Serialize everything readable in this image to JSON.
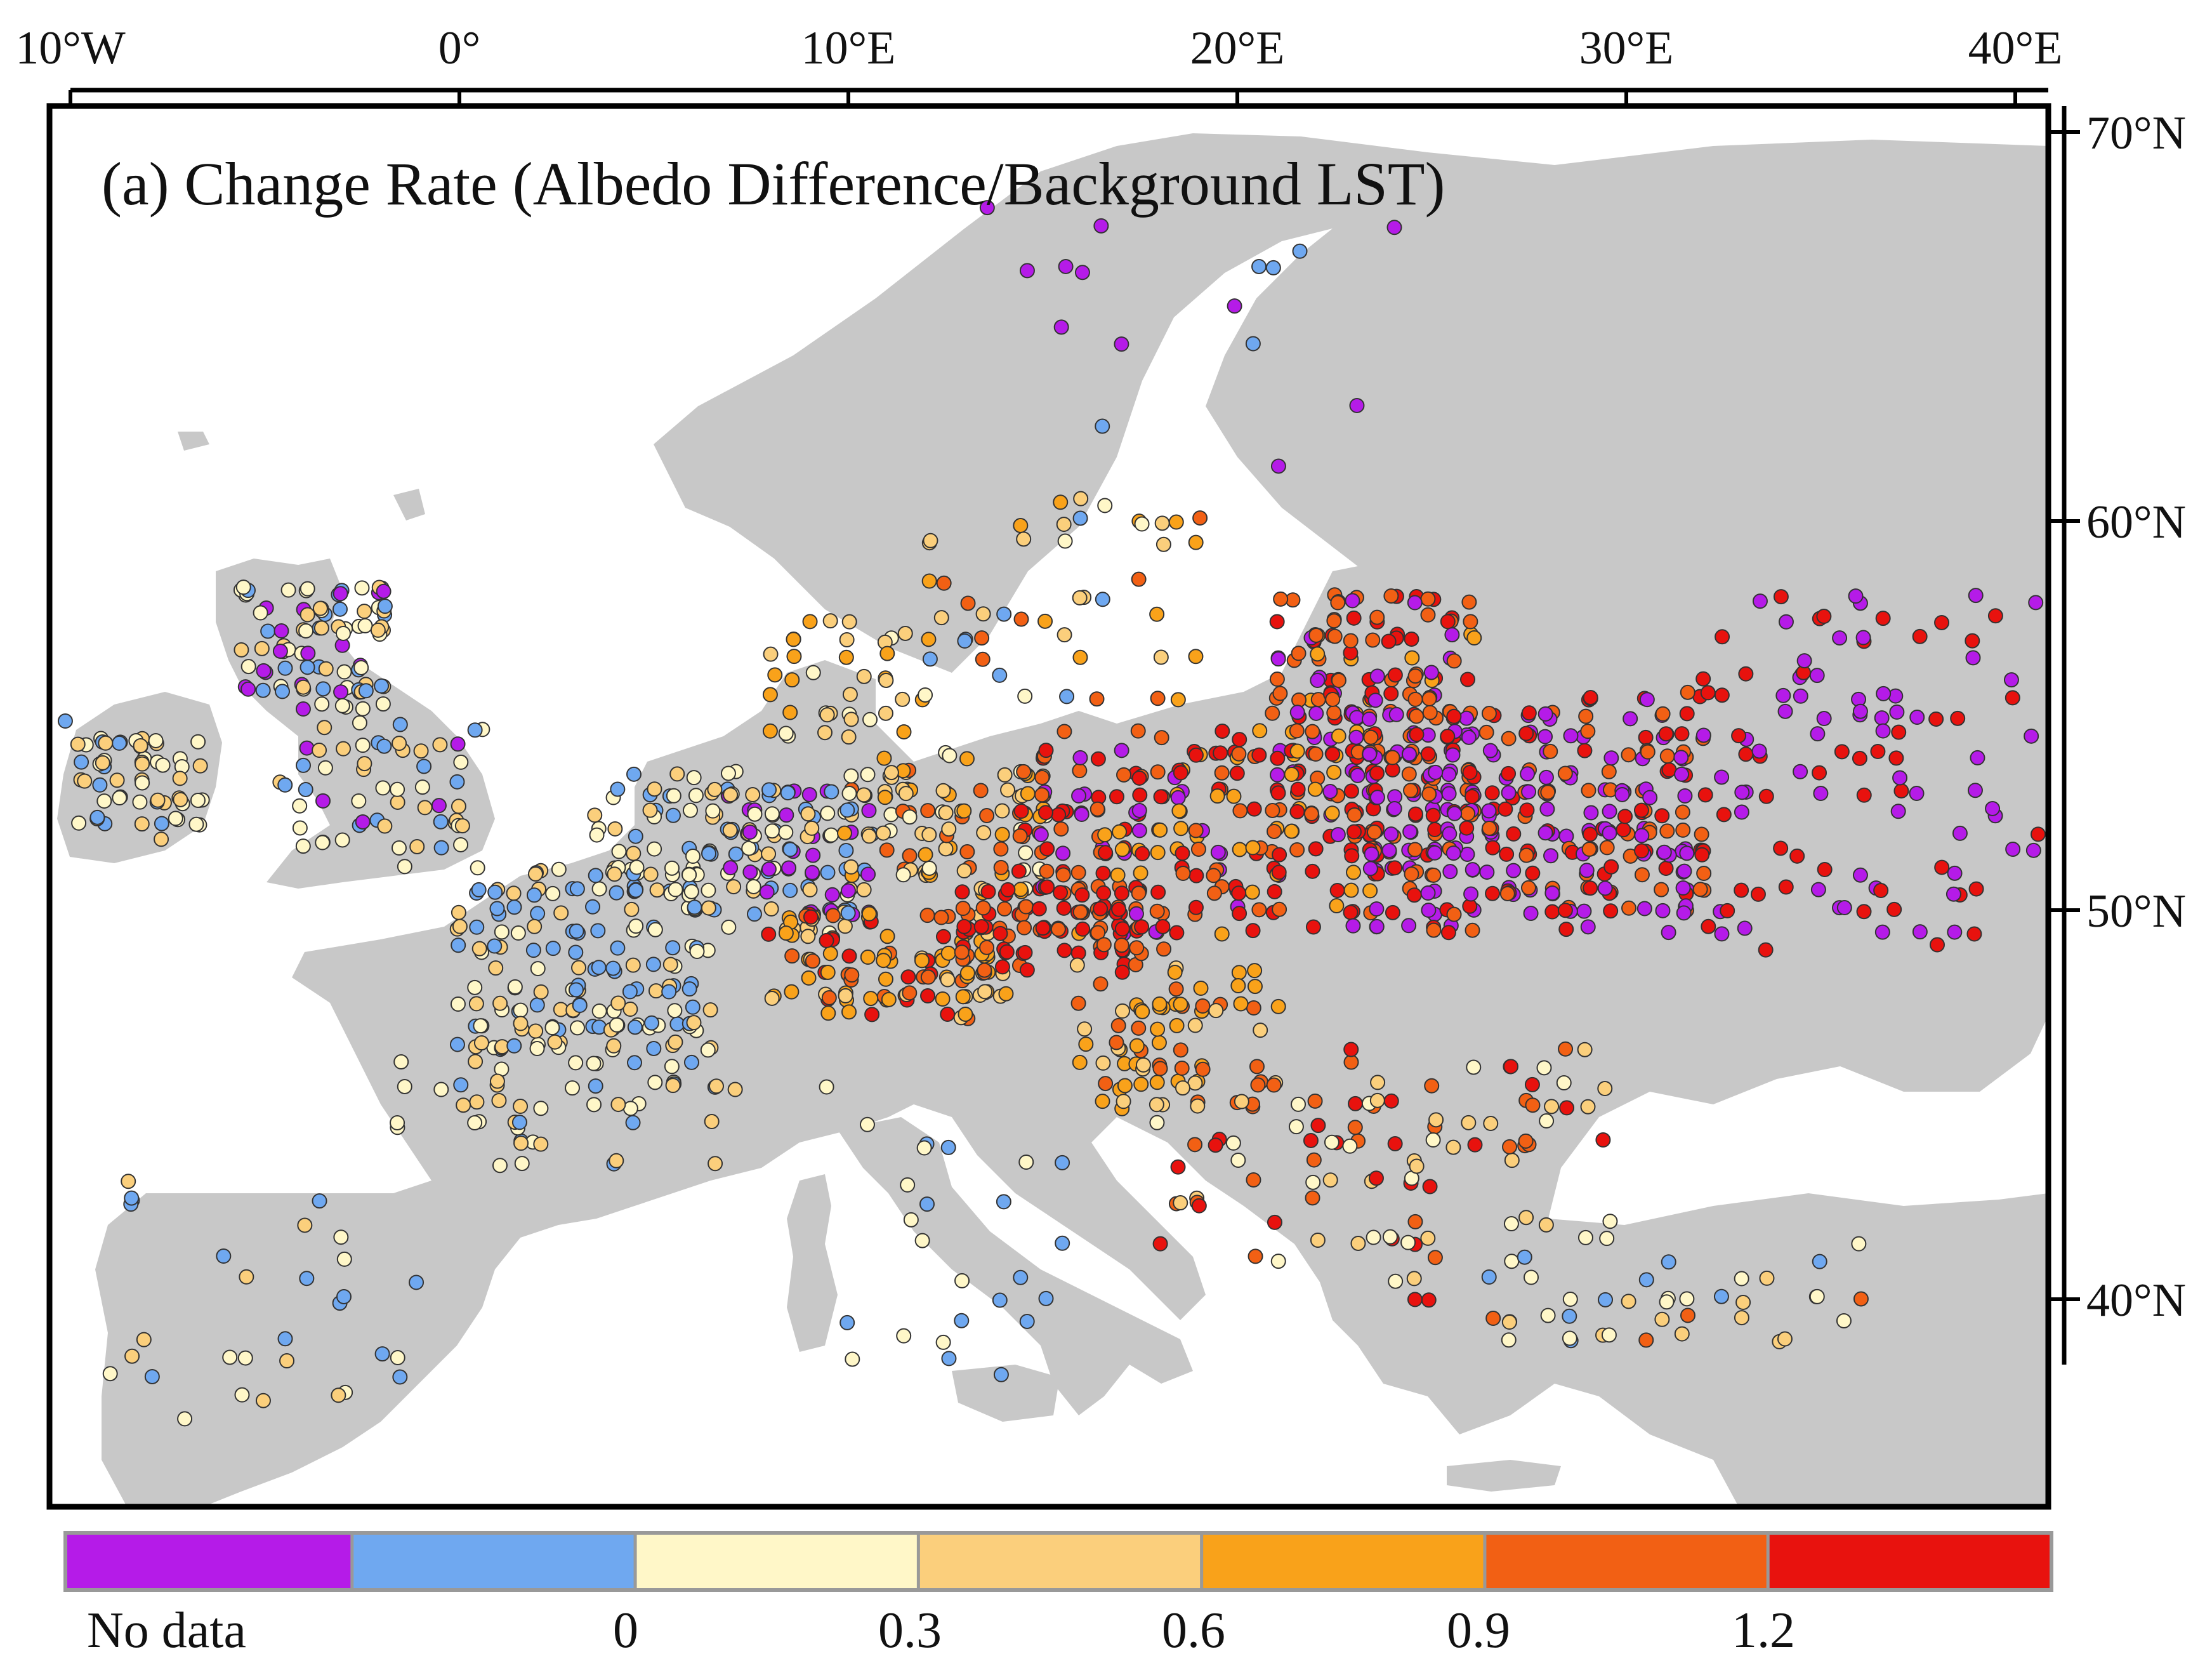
{
  "map": {
    "title": "(a) Change Rate (Albedo Difference/Background LST)",
    "lon_ticks": [
      {
        "value": -10,
        "label": "10°W"
      },
      {
        "value": 0,
        "label": "0°"
      },
      {
        "value": 10,
        "label": "10°E"
      },
      {
        "value": 20,
        "label": "20°E"
      },
      {
        "value": 30,
        "label": "30°E"
      },
      {
        "value": 40,
        "label": "40°E"
      }
    ],
    "lat_ticks": [
      {
        "value": 70,
        "label": "70°N"
      },
      {
        "value": 60,
        "label": "60°N"
      },
      {
        "value": 50,
        "label": "50°N"
      },
      {
        "value": 40,
        "label": "40°N"
      }
    ],
    "extent": {
      "lon": [
        -11,
        40.7
      ],
      "lat": [
        34.5,
        71.2
      ]
    },
    "colors": {
      "land": "#c8c8c8",
      "sea": "#ffffff",
      "no_data": "#b51be8",
      "c1": "#6fa8f0",
      "c2": "#fff7c8",
      "c3": "#fbcf7c",
      "c4": "#f9a21a",
      "c5": "#f26014",
      "c6": "#e8120e"
    }
  },
  "legend": {
    "classes": [
      {
        "id": "no_data",
        "color": "#b51be8"
      },
      {
        "id": "lt0",
        "color": "#6fa8f0"
      },
      {
        "id": "0-0.3",
        "color": "#fff7c8"
      },
      {
        "id": "0.3-0.6",
        "color": "#fbcf7c"
      },
      {
        "id": "0.6-0.9",
        "color": "#f9a21a"
      },
      {
        "id": "0.9-1.2",
        "color": "#f26014"
      },
      {
        "id": "gt1.2",
        "color": "#e8120e"
      }
    ],
    "labels": {
      "no_data": "No data",
      "v0": "0",
      "v03": "0.3",
      "v06": "0.6",
      "v09": "0.9",
      "v12": "1.2"
    }
  },
  "points": {
    "clusters": [
      {
        "region": "ireland",
        "lon": [
          -10.2,
          -6.5
        ],
        "lat": [
          51.8,
          54.6
        ],
        "classes": [
          "c2",
          "c3",
          "c1"
        ],
        "n": 60
      },
      {
        "region": "scotland",
        "lon": [
          -5.5,
          -1.8
        ],
        "lat": [
          55.2,
          58.5
        ],
        "classes": [
          "c2",
          "c3",
          "c1",
          "no_data"
        ],
        "n": 90
      },
      {
        "region": "england",
        "lon": [
          -4.5,
          0.5
        ],
        "lat": [
          51.2,
          54.8
        ],
        "classes": [
          "c3",
          "c2",
          "c1",
          "no_data"
        ],
        "n": 55
      },
      {
        "region": "france-north",
        "lon": [
          0,
          6.5
        ],
        "lat": [
          46.5,
          51
        ],
        "classes": [
          "c1",
          "c2",
          "c3"
        ],
        "n": 160
      },
      {
        "region": "benelux",
        "lon": [
          3.5,
          8
        ],
        "lat": [
          50.5,
          53.5
        ],
        "classes": [
          "c2",
          "c1",
          "c3"
        ],
        "n": 80
      },
      {
        "region": "germany-west",
        "lon": [
          7,
          10.5
        ],
        "lat": [
          49.5,
          53
        ],
        "classes": [
          "no_data",
          "c1",
          "c2",
          "c3"
        ],
        "n": 90
      },
      {
        "region": "germany-south",
        "lon": [
          8,
          14
        ],
        "lat": [
          47.3,
          49.8
        ],
        "classes": [
          "c4",
          "c5",
          "c6",
          "c3"
        ],
        "n": 110
      },
      {
        "region": "germany-east",
        "lon": [
          10,
          15
        ],
        "lat": [
          50.5,
          54
        ],
        "classes": [
          "c3",
          "c4",
          "c5",
          "c2"
        ],
        "n": 100
      },
      {
        "region": "poland",
        "lon": [
          14.5,
          24
        ],
        "lat": [
          49.5,
          54.5
        ],
        "classes": [
          "c6",
          "c5",
          "no_data",
          "c4"
        ],
        "n": 260
      },
      {
        "region": "czech",
        "lon": [
          13,
          18
        ],
        "lat": [
          48.5,
          50.5
        ],
        "classes": [
          "c6",
          "c5"
        ],
        "n": 90
      },
      {
        "region": "baltics",
        "lon": [
          21,
          26
        ],
        "lat": [
          54,
          58
        ],
        "classes": [
          "c5",
          "c6",
          "c4",
          "no_data"
        ],
        "n": 120
      },
      {
        "region": "belarus",
        "lon": [
          23,
          32
        ],
        "lat": [
          51.5,
          55.5
        ],
        "classes": [
          "no_data",
          "c6",
          "c5"
        ],
        "n": 240
      },
      {
        "region": "ukraine-north",
        "lon": [
          23,
          32
        ],
        "lat": [
          49.5,
          52
        ],
        "classes": [
          "no_data",
          "c6",
          "c5"
        ],
        "n": 120
      },
      {
        "region": "russia-west",
        "lon": [
          32,
          40.5
        ],
        "lat": [
          49,
          58
        ],
        "classes": [
          "no_data",
          "c6"
        ],
        "n": 110
      },
      {
        "region": "hungary",
        "lon": [
          16,
          21
        ],
        "lat": [
          45,
          48.5
        ],
        "classes": [
          "c4",
          "c3",
          "c5"
        ],
        "n": 80
      },
      {
        "region": "balkans",
        "lon": [
          18,
          25
        ],
        "lat": [
          40,
          45
        ],
        "classes": [
          "c6",
          "c5",
          "c2",
          "c3"
        ],
        "n": 50
      },
      {
        "region": "romania",
        "lon": [
          22,
          30
        ],
        "lat": [
          43.5,
          46.5
        ],
        "classes": [
          "c5",
          "c3",
          "c6",
          "c2"
        ],
        "n": 40
      },
      {
        "region": "france-south",
        "lon": [
          -1.5,
          7
        ],
        "lat": [
          43.5,
          46.5
        ],
        "classes": [
          "c2",
          "c1",
          "c3"
        ],
        "n": 55
      },
      {
        "region": "spain",
        "lon": [
          -9.5,
          -1
        ],
        "lat": [
          37,
          43.3
        ],
        "classes": [
          "c1",
          "c2",
          "c3"
        ],
        "n": 30
      },
      {
        "region": "italy",
        "lon": [
          8.5,
          16
        ],
        "lat": [
          38,
          45.5
        ],
        "classes": [
          "c1",
          "c2"
        ],
        "n": 25
      },
      {
        "region": "turkey",
        "lon": [
          26,
          36
        ],
        "lat": [
          38.5,
          42
        ],
        "classes": [
          "c2",
          "c3",
          "c1",
          "c5"
        ],
        "n": 45
      },
      {
        "region": "denmark",
        "lon": [
          8,
          12.5
        ],
        "lat": [
          54.5,
          57.5
        ],
        "classes": [
          "c3",
          "c4",
          "c2"
        ],
        "n": 40
      },
      {
        "region": "sweden-south",
        "lon": [
          12,
          19
        ],
        "lat": [
          55.5,
          60.5
        ],
        "classes": [
          "c3",
          "c4",
          "c1",
          "c2",
          "c5"
        ],
        "n": 45
      },
      {
        "region": "scandinavia",
        "lon": [
          13,
          25
        ],
        "lat": [
          61,
          68.5
        ],
        "classes": [
          "no_data",
          "c1"
        ],
        "n": 16
      }
    ]
  }
}
